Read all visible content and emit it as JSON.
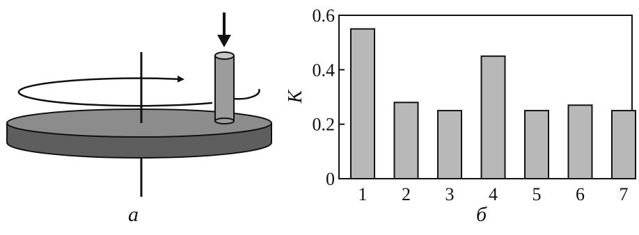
{
  "panels": {
    "left_caption": "а",
    "right_caption": "б"
  },
  "colors": {
    "bar_fill": "#b8b8b8",
    "disk_top": "#8c8c8c",
    "disk_side": "#5e5e5e",
    "pin_fill": "#9c9c9c",
    "line": "#111111"
  },
  "chart_data": {
    "type": "bar",
    "categories": [
      "1",
      "2",
      "3",
      "4",
      "5",
      "6",
      "7"
    ],
    "values": [
      0.55,
      0.28,
      0.25,
      0.45,
      0.25,
      0.27,
      0.25
    ],
    "ylabel": "K",
    "ylim": [
      0,
      0.6
    ],
    "yticks": [
      "0",
      "0.2",
      "0.4",
      "0.6"
    ],
    "grid": false
  }
}
